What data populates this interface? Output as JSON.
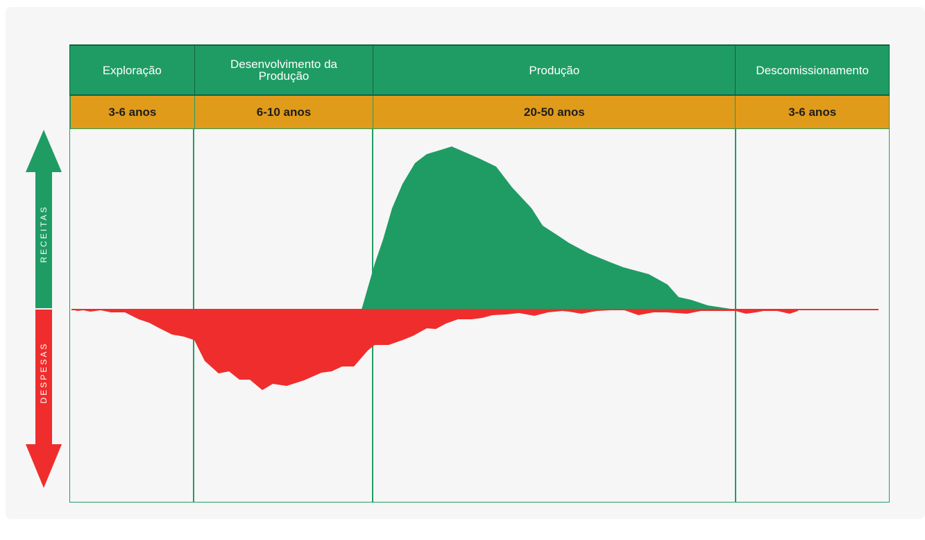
{
  "phases": [
    {
      "name": "Exploração",
      "duration": "3-6 anos"
    },
    {
      "name": "Desenvolvimento da Produção",
      "duration": "6-10 anos"
    },
    {
      "name": "Produção",
      "duration": "20-50 anos"
    },
    {
      "name": "Descomissionamento",
      "duration": "3-6 anos"
    }
  ],
  "axis": {
    "up_label": "RECEITAS",
    "down_label": "DESPESAS"
  },
  "colors": {
    "green": "#1f9c64",
    "orange": "#e09b1a",
    "red": "#ef2d2d",
    "background": "#f6f6f6"
  }
}
